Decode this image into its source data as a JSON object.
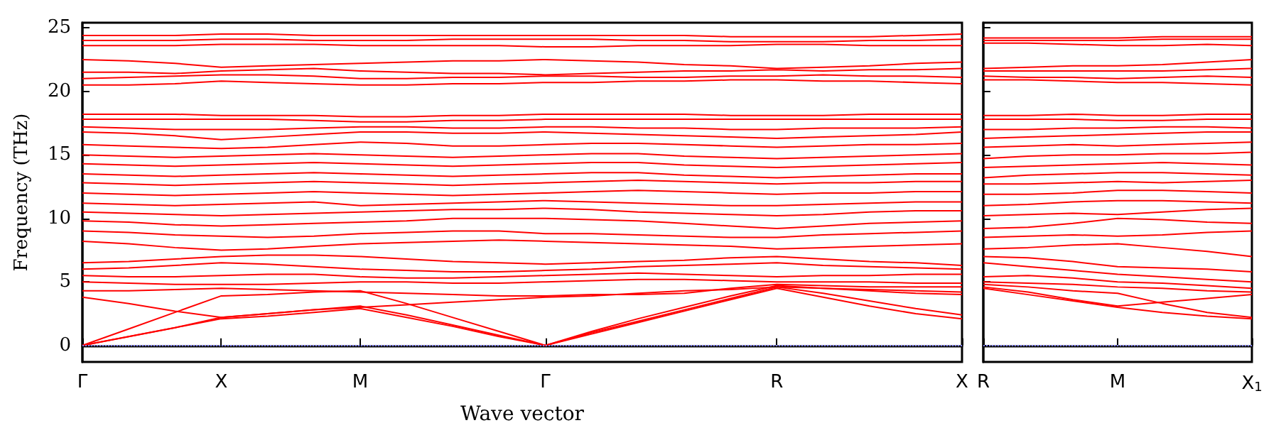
{
  "chart_data": [
    {
      "type": "line",
      "xlabel": "Wave vector",
      "ylabel": "Frequency (THz)",
      "categories": [
        "Γ",
        null,
        null,
        "X",
        null,
        null,
        "M",
        null,
        null,
        null,
        "Γ",
        null,
        null,
        null,
        null,
        "R",
        null,
        null,
        null,
        "X"
      ],
      "ylim": [
        -1.3,
        25.4
      ],
      "yticks": [
        0,
        5,
        10,
        15,
        20,
        25
      ],
      "grid": false,
      "marker": "none",
      "line_style": "solid",
      "ref_lines": [
        {
          "axis": "y",
          "value": 0,
          "color": "#8080ff",
          "line_style": "dotted"
        }
      ],
      "series": [
        {
          "color": "#ff0000",
          "values": [
            0,
            0.7,
            1.4,
            2.1,
            2.3,
            2.6,
            2.9,
            2.2,
            1.5,
            0.7,
            0,
            0.9,
            1.8,
            2.7,
            3.6,
            4.5,
            3.8,
            3.1,
            2.5,
            2.1
          ]
        },
        {
          "color": "#ff0000",
          "values": [
            0,
            0.7,
            1.4,
            2.2,
            2.5,
            2.8,
            3.1,
            2.4,
            1.6,
            0.8,
            0,
            1.0,
            1.9,
            2.8,
            3.7,
            4.6,
            4.1,
            3.5,
            2.9,
            2.4
          ]
        },
        {
          "color": "#ff0000",
          "values": [
            0,
            1.3,
            2.6,
            3.9,
            4.0,
            4.2,
            4.3,
            3.3,
            2.2,
            1.1,
            0,
            1.1,
            2.1,
            3.0,
            3.9,
            4.7,
            4.5,
            4.3,
            4.1,
            4.0
          ]
        },
        {
          "color": "#ff0000",
          "values": [
            3.8,
            3.3,
            2.7,
            2.2,
            2.5,
            2.8,
            3.0,
            3.2,
            3.4,
            3.6,
            3.8,
            3.9,
            4.1,
            4.3,
            4.4,
            4.6,
            4.5,
            4.4,
            4.3,
            4.2
          ]
        },
        {
          "color": "#ff0000",
          "values": [
            4.3,
            4.3,
            4.4,
            4.5,
            4.4,
            4.3,
            4.2,
            4.1,
            4.0,
            3.9,
            3.9,
            4.0,
            4.0,
            4.1,
            4.5,
            4.8,
            4.7,
            4.6,
            4.6,
            4.6
          ]
        },
        {
          "color": "#ff0000",
          "values": [
            5.0,
            4.9,
            4.8,
            4.8,
            4.8,
            4.9,
            5.0,
            5.0,
            4.9,
            4.9,
            5.0,
            5.1,
            5.2,
            5.2,
            5.1,
            5.0,
            5.0,
            5.0,
            4.9,
            4.9
          ]
        },
        {
          "color": "#ff0000",
          "values": [
            5.5,
            5.4,
            5.4,
            5.5,
            5.6,
            5.6,
            5.4,
            5.3,
            5.3,
            5.4,
            5.5,
            5.6,
            5.7,
            5.6,
            5.5,
            5.4,
            5.5,
            5.5,
            5.6,
            5.6
          ]
        },
        {
          "color": "#ff0000",
          "values": [
            6.0,
            6.1,
            6.3,
            6.5,
            6.4,
            6.2,
            6.0,
            5.9,
            5.8,
            5.8,
            5.9,
            6.0,
            6.2,
            6.3,
            6.4,
            6.5,
            6.3,
            6.2,
            6.1,
            6.0
          ]
        },
        {
          "color": "#ff0000",
          "values": [
            6.5,
            6.6,
            6.8,
            7.0,
            7.1,
            7.1,
            7.0,
            6.8,
            6.6,
            6.5,
            6.4,
            6.5,
            6.6,
            6.7,
            6.9,
            7.0,
            6.8,
            6.6,
            6.5,
            6.3
          ]
        },
        {
          "color": "#ff0000",
          "values": [
            8.2,
            8.0,
            7.7,
            7.5,
            7.6,
            7.8,
            8.0,
            8.1,
            8.2,
            8.3,
            8.2,
            8.1,
            8.0,
            7.9,
            7.8,
            7.6,
            7.7,
            7.8,
            7.9,
            8.0
          ]
        },
        {
          "color": "#ff0000",
          "values": [
            9.0,
            8.9,
            8.7,
            8.6,
            8.5,
            8.6,
            8.8,
            8.9,
            9.0,
            9.0,
            8.8,
            8.8,
            8.7,
            8.6,
            8.5,
            8.5,
            8.7,
            8.8,
            8.9,
            9.0
          ]
        },
        {
          "color": "#ff0000",
          "values": [
            9.8,
            9.7,
            9.5,
            9.4,
            9.5,
            9.6,
            9.7,
            9.8,
            10.0,
            10.0,
            10.0,
            9.9,
            9.8,
            9.6,
            9.4,
            9.2,
            9.4,
            9.6,
            9.7,
            9.8
          ]
        },
        {
          "color": "#ff0000",
          "values": [
            10.5,
            10.4,
            10.3,
            10.2,
            10.3,
            10.4,
            10.5,
            10.6,
            10.7,
            10.7,
            10.8,
            10.7,
            10.5,
            10.4,
            10.3,
            10.2,
            10.3,
            10.5,
            10.6,
            10.6
          ]
        },
        {
          "color": "#ff0000",
          "values": [
            11.2,
            11.1,
            11.0,
            11.1,
            11.2,
            11.3,
            11.0,
            11.1,
            11.2,
            11.3,
            11.4,
            11.3,
            11.2,
            11.1,
            11.0,
            11.0,
            11.1,
            11.2,
            11.3,
            11.3
          ]
        },
        {
          "color": "#ff0000",
          "values": [
            12.0,
            11.9,
            11.8,
            11.9,
            12.0,
            12.1,
            12.0,
            11.9,
            11.8,
            11.9,
            12.0,
            12.1,
            12.2,
            12.1,
            12.0,
            11.9,
            12.0,
            12.0,
            12.1,
            12.1
          ]
        },
        {
          "color": "#ff0000",
          "values": [
            12.8,
            12.7,
            12.6,
            12.7,
            12.8,
            12.9,
            12.8,
            12.7,
            12.6,
            12.7,
            12.8,
            12.9,
            13.0,
            12.9,
            12.8,
            12.7,
            12.8,
            12.8,
            12.9,
            12.9
          ]
        },
        {
          "color": "#ff0000",
          "values": [
            13.5,
            13.4,
            13.3,
            13.4,
            13.5,
            13.6,
            13.5,
            13.4,
            13.3,
            13.4,
            13.5,
            13.6,
            13.6,
            13.4,
            13.3,
            13.2,
            13.3,
            13.4,
            13.5,
            13.5
          ]
        },
        {
          "color": "#ff0000",
          "values": [
            14.3,
            14.2,
            14.1,
            14.2,
            14.3,
            14.4,
            14.3,
            14.2,
            14.1,
            14.2,
            14.3,
            14.4,
            14.4,
            14.2,
            14.1,
            14.0,
            14.1,
            14.2,
            14.3,
            14.4
          ]
        },
        {
          "color": "#ff0000",
          "values": [
            15.0,
            14.9,
            14.8,
            14.9,
            15.0,
            15.1,
            15.0,
            14.9,
            14.8,
            14.9,
            15.0,
            15.1,
            15.1,
            14.9,
            14.8,
            14.7,
            14.8,
            14.9,
            15.0,
            15.1
          ]
        },
        {
          "color": "#ff0000",
          "values": [
            15.8,
            15.7,
            15.6,
            15.5,
            15.6,
            15.8,
            16.0,
            15.9,
            15.7,
            15.7,
            15.8,
            15.9,
            15.9,
            15.8,
            15.7,
            15.6,
            15.7,
            15.8,
            15.8,
            15.9
          ]
        },
        {
          "color": "#ff0000",
          "values": [
            16.8,
            16.7,
            16.5,
            16.2,
            16.4,
            16.6,
            16.8,
            16.8,
            16.7,
            16.7,
            16.8,
            16.7,
            16.6,
            16.5,
            16.4,
            16.3,
            16.4,
            16.5,
            16.6,
            16.8
          ]
        },
        {
          "color": "#ff0000",
          "values": [
            17.2,
            17.1,
            17.0,
            17.0,
            17.0,
            17.1,
            17.2,
            17.2,
            17.1,
            17.1,
            17.2,
            17.2,
            17.1,
            17.1,
            17.0,
            17.0,
            17.1,
            17.1,
            17.1,
            17.2
          ]
        },
        {
          "color": "#ff0000",
          "values": [
            17.8,
            17.8,
            17.8,
            17.8,
            17.8,
            17.7,
            17.6,
            17.6,
            17.7,
            17.7,
            17.8,
            17.8,
            17.8,
            17.8,
            17.8,
            17.8,
            17.8,
            17.8,
            17.8,
            17.8
          ]
        },
        {
          "color": "#ff0000",
          "values": [
            18.2,
            18.2,
            18.2,
            18.1,
            18.1,
            18.1,
            18.0,
            18.0,
            18.1,
            18.1,
            18.2,
            18.2,
            18.2,
            18.2,
            18.1,
            18.1,
            18.1,
            18.2,
            18.2,
            18.2
          ]
        },
        {
          "color": "#ff0000",
          "values": [
            20.5,
            20.5,
            20.6,
            20.8,
            20.7,
            20.6,
            20.5,
            20.5,
            20.6,
            20.6,
            20.7,
            20.7,
            20.8,
            20.8,
            20.9,
            20.9,
            20.8,
            20.8,
            20.7,
            20.6
          ]
        },
        {
          "color": "#ff0000",
          "values": [
            21.0,
            21.1,
            21.2,
            21.3,
            21.3,
            21.2,
            21.0,
            21.0,
            21.1,
            21.1,
            21.2,
            21.2,
            21.1,
            21.1,
            21.2,
            21.2,
            21.3,
            21.2,
            21.2,
            21.1
          ]
        },
        {
          "color": "#ff0000",
          "values": [
            21.5,
            21.5,
            21.4,
            21.6,
            21.7,
            21.8,
            21.6,
            21.5,
            21.4,
            21.4,
            21.3,
            21.4,
            21.5,
            21.6,
            21.6,
            21.7,
            21.6,
            21.7,
            21.7,
            21.8
          ]
        },
        {
          "color": "#ff0000",
          "values": [
            22.5,
            22.4,
            22.2,
            21.9,
            22.0,
            22.1,
            22.2,
            22.3,
            22.4,
            22.4,
            22.5,
            22.4,
            22.3,
            22.1,
            22.0,
            21.8,
            21.9,
            22.0,
            22.2,
            22.3
          ]
        },
        {
          "color": "#ff0000",
          "values": [
            23.6,
            23.6,
            23.6,
            23.7,
            23.7,
            23.7,
            23.6,
            23.6,
            23.6,
            23.6,
            23.5,
            23.5,
            23.6,
            23.6,
            23.6,
            23.7,
            23.7,
            23.6,
            23.6,
            23.6
          ]
        },
        {
          "color": "#ff0000",
          "values": [
            24.0,
            24.0,
            24.0,
            24.1,
            24.1,
            24.0,
            24.0,
            24.0,
            24.1,
            24.1,
            24.1,
            24.1,
            24.0,
            24.0,
            23.9,
            23.9,
            23.9,
            24.0,
            24.0,
            24.1
          ]
        },
        {
          "color": "#ff0000",
          "values": [
            24.4,
            24.4,
            24.4,
            24.5,
            24.5,
            24.4,
            24.4,
            24.4,
            24.4,
            24.4,
            24.4,
            24.4,
            24.4,
            24.4,
            24.3,
            24.3,
            24.3,
            24.3,
            24.4,
            24.5
          ]
        }
      ]
    },
    {
      "type": "line",
      "categories": [
        "R",
        null,
        null,
        "M",
        null,
        null,
        "X$_{1}$"
      ],
      "ylim": [
        -1.3,
        25.4
      ],
      "yticks": [
        0,
        5,
        10,
        15,
        20,
        25
      ],
      "tick_labels": "x",
      "grid": false,
      "marker": "none",
      "line_style": "solid",
      "ref_lines": [
        {
          "axis": "y",
          "value": 0,
          "color": "#8080ff",
          "line_style": "dotted"
        }
      ],
      "series": [
        {
          "color": "#ff0000",
          "values": [
            4.5,
            4.0,
            3.5,
            3.0,
            2.6,
            2.3,
            2.1
          ]
        },
        {
          "color": "#ff0000",
          "values": [
            4.6,
            4.2,
            3.6,
            3.1,
            3.4,
            3.7,
            4.0
          ]
        },
        {
          "color": "#ff0000",
          "values": [
            4.8,
            4.6,
            4.3,
            4.1,
            3.3,
            2.6,
            2.2
          ]
        },
        {
          "color": "#ff0000",
          "values": [
            5.0,
            4.9,
            4.8,
            4.6,
            4.5,
            4.3,
            4.2
          ]
        },
        {
          "color": "#ff0000",
          "values": [
            5.4,
            5.5,
            5.3,
            5.0,
            4.9,
            4.7,
            4.5
          ]
        },
        {
          "color": "#ff0000",
          "values": [
            6.5,
            6.2,
            5.9,
            5.6,
            5.4,
            5.2,
            5.0
          ]
        },
        {
          "color": "#ff0000",
          "values": [
            7.0,
            6.9,
            6.6,
            6.2,
            6.1,
            6.0,
            5.8
          ]
        },
        {
          "color": "#ff0000",
          "values": [
            7.6,
            7.7,
            7.9,
            8.0,
            7.7,
            7.4,
            7.0
          ]
        },
        {
          "color": "#ff0000",
          "values": [
            8.5,
            8.6,
            8.7,
            8.6,
            8.7,
            8.9,
            9.0
          ]
        },
        {
          "color": "#ff0000",
          "values": [
            9.2,
            9.3,
            9.6,
            10.0,
            9.9,
            9.7,
            9.6
          ]
        },
        {
          "color": "#ff0000",
          "values": [
            10.2,
            10.3,
            10.4,
            10.3,
            10.5,
            10.7,
            10.8
          ]
        },
        {
          "color": "#ff0000",
          "values": [
            11.0,
            11.1,
            11.3,
            11.4,
            11.4,
            11.3,
            11.2
          ]
        },
        {
          "color": "#ff0000",
          "values": [
            11.9,
            11.9,
            12.0,
            12.2,
            12.2,
            12.1,
            12.0
          ]
        },
        {
          "color": "#ff0000",
          "values": [
            12.7,
            12.7,
            12.8,
            12.9,
            12.8,
            12.9,
            13.0
          ]
        },
        {
          "color": "#ff0000",
          "values": [
            13.2,
            13.4,
            13.5,
            13.6,
            13.6,
            13.5,
            13.4
          ]
        },
        {
          "color": "#ff0000",
          "values": [
            14.0,
            14.1,
            14.2,
            14.3,
            14.4,
            14.3,
            14.2
          ]
        },
        {
          "color": "#ff0000",
          "values": [
            14.7,
            14.9,
            15.0,
            15.0,
            15.1,
            15.1,
            15.2
          ]
        },
        {
          "color": "#ff0000",
          "values": [
            15.6,
            15.7,
            15.8,
            15.7,
            15.8,
            15.9,
            16.0
          ]
        },
        {
          "color": "#ff0000",
          "values": [
            16.3,
            16.4,
            16.5,
            16.6,
            16.7,
            16.8,
            16.8
          ]
        },
        {
          "color": "#ff0000",
          "values": [
            17.0,
            17.0,
            17.1,
            17.1,
            17.2,
            17.2,
            17.1
          ]
        },
        {
          "color": "#ff0000",
          "values": [
            17.8,
            17.8,
            17.8,
            17.7,
            17.7,
            17.8,
            17.8
          ]
        },
        {
          "color": "#ff0000",
          "values": [
            18.1,
            18.1,
            18.2,
            18.1,
            18.1,
            18.2,
            18.2
          ]
        },
        {
          "color": "#ff0000",
          "values": [
            20.9,
            20.9,
            20.8,
            20.7,
            20.7,
            20.6,
            20.5
          ]
        },
        {
          "color": "#ff0000",
          "values": [
            21.2,
            21.1,
            21.1,
            21.0,
            21.1,
            21.2,
            21.1
          ]
        },
        {
          "color": "#ff0000",
          "values": [
            21.6,
            21.6,
            21.6,
            21.6,
            21.6,
            21.7,
            21.8
          ]
        },
        {
          "color": "#ff0000",
          "values": [
            21.8,
            21.9,
            22.0,
            22.0,
            22.1,
            22.3,
            22.5
          ]
        },
        {
          "color": "#ff0000",
          "values": [
            23.8,
            23.8,
            23.7,
            23.6,
            23.6,
            23.7,
            23.6
          ]
        },
        {
          "color": "#ff0000",
          "values": [
            24.0,
            24.0,
            24.0,
            24.0,
            24.1,
            24.1,
            24.1
          ]
        },
        {
          "color": "#ff0000",
          "values": [
            24.2,
            24.2,
            24.2,
            24.2,
            24.3,
            24.3,
            24.3
          ]
        }
      ]
    }
  ]
}
